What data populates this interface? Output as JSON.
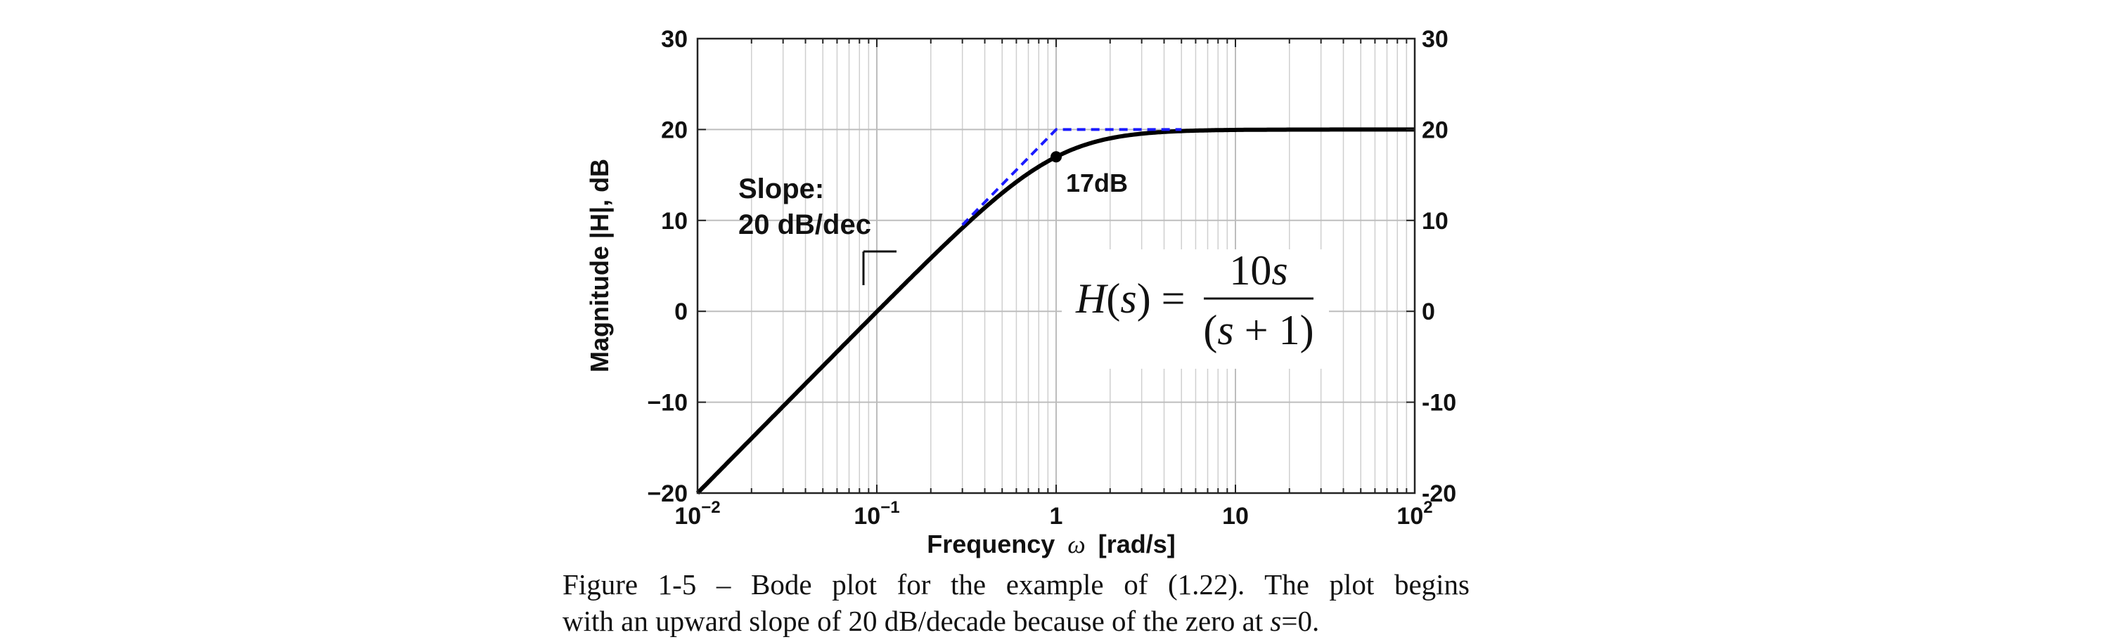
{
  "chart_data": {
    "type": "line",
    "xlabel": "Frequency",
    "xlabel_symbol": "ω",
    "xlabel_unit": "[rad/s]",
    "ylabel": "Magnitude |H|, dB",
    "xscale": "log",
    "xlim": [
      0.01,
      100
    ],
    "ylim": [
      -20,
      30
    ],
    "x_ticks": [
      0.01,
      0.1,
      1,
      10,
      100
    ],
    "x_tick_labels": [
      {
        "base": "10",
        "exp": "−2"
      },
      {
        "base": "10",
        "exp": "−1"
      },
      {
        "base": "1",
        "exp": ""
      },
      {
        "base": "10",
        "exp": ""
      },
      {
        "base": "10",
        "exp": "2"
      }
    ],
    "y_ticks_left": [
      "30",
      "20",
      "10",
      "0",
      "−10",
      "−20"
    ],
    "y_ticks_right": [
      "30",
      "20",
      "10",
      "0",
      "-10",
      "-20"
    ],
    "y_tick_values": [
      30,
      20,
      10,
      0,
      -10,
      -20
    ],
    "grid": true,
    "series": [
      {
        "style": "solid",
        "color": "#000000",
        "function": "20*log10(10*w/sqrt(w^2+1))"
      },
      {
        "style": "dashed",
        "color": "#1a1aff",
        "x": [
          0.3,
          1,
          5
        ],
        "y": [
          9.5,
          20,
          20
        ]
      }
    ],
    "marker": {
      "x": 1,
      "y": 17,
      "label": "17dB"
    },
    "annotations": {
      "slope_line1": "Slope:",
      "slope_line2": "20 dB/dec"
    }
  },
  "formula": {
    "lhs": "H(s) =",
    "numerator": "10s",
    "denominator": "(s + 1)"
  },
  "caption": {
    "line1": "Figure 1-5 – Bode plot for the example of (1.22).  The plot begins",
    "line2_pre": "with an upward slope of 20 dB/decade because of the zero at ",
    "line2_var": "s",
    "line2_post": "=0."
  }
}
